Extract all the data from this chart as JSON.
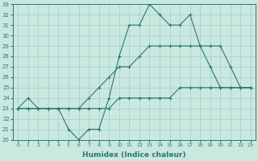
{
  "xlabel": "Humidex (Indice chaleur)",
  "x": [
    0,
    1,
    2,
    3,
    4,
    5,
    6,
    7,
    8,
    9,
    10,
    11,
    12,
    13,
    14,
    15,
    16,
    17,
    18,
    19,
    20,
    21,
    22,
    23
  ],
  "line1": [
    23,
    24,
    23,
    23,
    23,
    21,
    20,
    21,
    21,
    24,
    28,
    31,
    31,
    33,
    32,
    31,
    31,
    32,
    29,
    27,
    25,
    25,
    25,
    25
  ],
  "line2": [
    23,
    23,
    23,
    23,
    23,
    23,
    23,
    24,
    25,
    26,
    27,
    27,
    28,
    29,
    29,
    29,
    29,
    29,
    29,
    29,
    29,
    27,
    25,
    25
  ],
  "line3": [
    23,
    23,
    23,
    23,
    23,
    23,
    23,
    23,
    23,
    23,
    24,
    24,
    24,
    24,
    24,
    24,
    25,
    25,
    25,
    25,
    25,
    25,
    25,
    25
  ],
  "line_color": "#2a7a68",
  "bg_color": "#c8e8e0",
  "grid_color": "#a8ccc4",
  "ylim_min": 20,
  "ylim_max": 33,
  "xlim_min": 0,
  "xlim_max": 23
}
